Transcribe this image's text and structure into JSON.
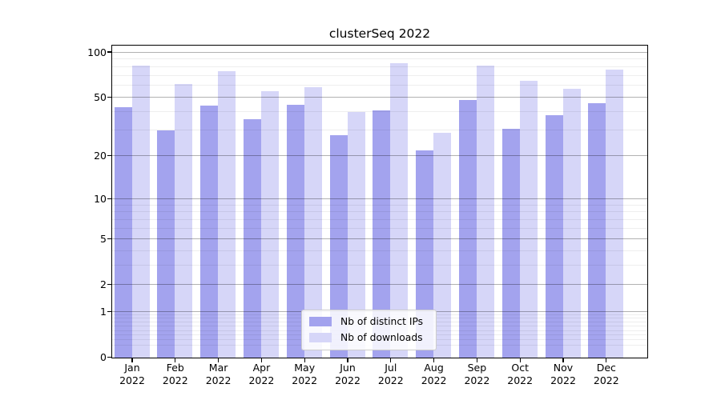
{
  "chart_data": {
    "type": "bar",
    "title": "clusterSeq 2022",
    "categories": [
      "Jan 2022",
      "Feb 2022",
      "Mar 2022",
      "Apr 2022",
      "May 2022",
      "Jun 2022",
      "Jul 2022",
      "Aug 2022",
      "Sep 2022",
      "Oct 2022",
      "Nov 2022",
      "Dec 2022"
    ],
    "series": [
      {
        "name": "Nb of distinct IPs",
        "color": "#a3a3ee",
        "values": [
          43,
          30,
          44,
          36,
          45,
          28,
          41,
          22,
          48,
          31,
          38,
          46
        ]
      },
      {
        "name": "Nb of downloads",
        "color": "#d6d6f8",
        "values": [
          82,
          62,
          75,
          55,
          59,
          40,
          85,
          29,
          82,
          65,
          57,
          77
        ]
      }
    ],
    "xlabel": "",
    "ylabel": "",
    "yscale": "log1p",
    "ylim": [
      0,
      110
    ],
    "ytick_values": [
      100,
      50,
      20,
      10,
      5,
      2,
      1,
      0
    ],
    "ytick_labels": [
      "100",
      "50",
      "20",
      "10",
      "5",
      "2",
      "1",
      "0"
    ],
    "yminor_values": [
      0.2,
      0.3,
      0.4,
      0.5,
      0.6,
      0.7,
      0.8,
      0.9,
      3,
      4,
      6,
      7,
      8,
      9,
      30,
      40,
      60,
      70,
      80,
      90
    ],
    "grid": true,
    "legend_position": "lower center"
  }
}
